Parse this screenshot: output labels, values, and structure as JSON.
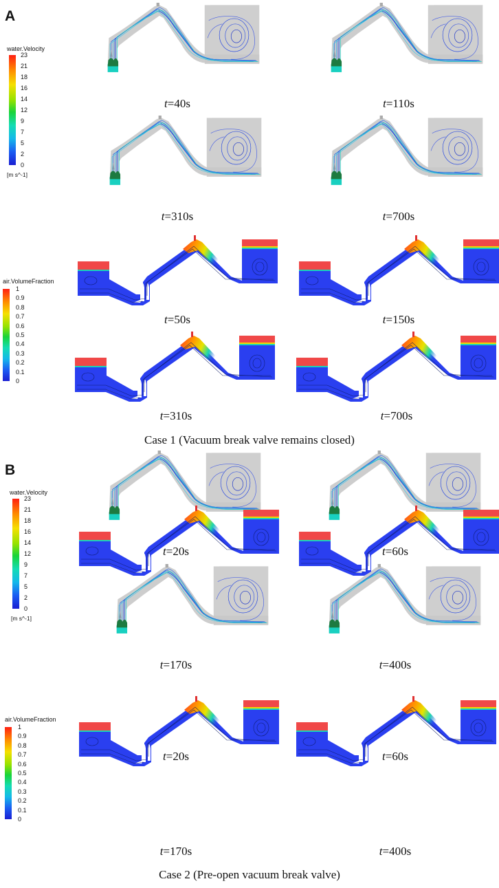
{
  "panels": [
    {
      "letter": "A",
      "velocity_legend": {
        "title": "water.Velocity",
        "ticks": [
          "23",
          "21",
          "18",
          "16",
          "14",
          "12",
          "9",
          "7",
          "5",
          "2",
          "0"
        ],
        "unit": "[m s^-1]"
      },
      "velocity_frames": [
        {
          "t": "t",
          "rest": "=40s"
        },
        {
          "t": "t",
          "rest": "=110s"
        },
        {
          "t": "t",
          "rest": "=310s"
        },
        {
          "t": "t",
          "rest": "=700s"
        }
      ],
      "fraction_legend": {
        "title": "air.VolumeFraction",
        "ticks": [
          "1",
          "0.9",
          "0.8",
          "0.7",
          "0.6",
          "0.5",
          "0.4",
          "0.3",
          "0.2",
          "0.1",
          "0"
        ]
      },
      "fraction_frames": [
        {
          "t": "t",
          "rest": "=50s"
        },
        {
          "t": "t",
          "rest": "=150s"
        },
        {
          "t": "t",
          "rest": "=310s"
        },
        {
          "t": "t",
          "rest": "=700s"
        }
      ],
      "case_caption": "Case 1 (Vacuum break valve remains closed)"
    },
    {
      "letter": "B",
      "velocity_legend": {
        "title": "water.Velocity",
        "ticks": [
          "23",
          "21",
          "18",
          "16",
          "14",
          "12",
          "9",
          "7",
          "5",
          "2",
          "0"
        ],
        "unit": "[m s^-1]"
      },
      "velocity_frames": [
        {
          "t": "t",
          "rest": "=20s"
        },
        {
          "t": "t",
          "rest": "=60s"
        },
        {
          "t": "t",
          "rest": "=170s"
        },
        {
          "t": "t",
          "rest": "=400s"
        }
      ],
      "fraction_legend": {
        "title": "air.VolumeFraction",
        "ticks": [
          "1",
          "0.9",
          "0.8",
          "0.7",
          "0.6",
          "0.5",
          "0.4",
          "0.3",
          "0.2",
          "0.1",
          "0"
        ]
      },
      "fraction_frames": [
        {
          "t": "t",
          "rest": "=20s"
        },
        {
          "t": "t",
          "rest": "=60s"
        },
        {
          "t": "t",
          "rest": "=170s"
        },
        {
          "t": "t",
          "rest": "=400s"
        }
      ],
      "case_caption": "Case 2 (Pre-open vacuum break valve)"
    }
  ],
  "colors": {
    "rainbow": [
      "#ff2a1a",
      "#ff8a00",
      "#f2dc00",
      "#9be000",
      "#19d23c",
      "#16d9b4",
      "#13b6e8",
      "#1656f0",
      "#1a26d8"
    ],
    "pipe_gray": "#c9c9c9",
    "fluid_blue": "#2a3ff0",
    "air_red": "#f24a4a"
  }
}
